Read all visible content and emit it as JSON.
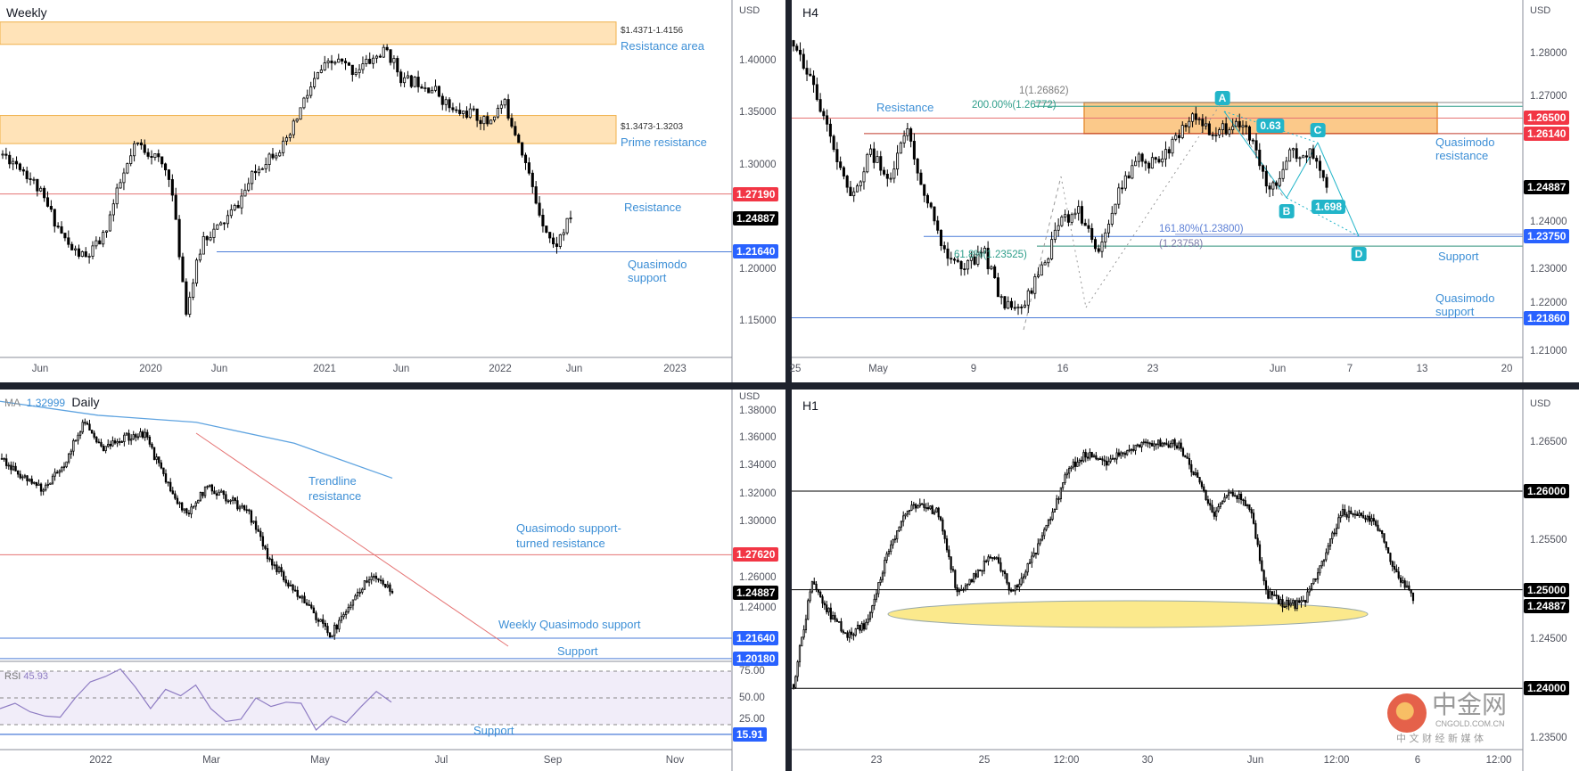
{
  "colors": {
    "resistance_line": "#e57373",
    "support_line": "#4a7bd8",
    "zone_fill": "#ffe3b8",
    "zone_border": "#f0b04a",
    "h4_zone_fill": "#fbc98a",
    "h4_zone_border": "#e8923a",
    "label_text": "#3d8fd6",
    "harmonic": "#22b5c9",
    "ma": "#5ea3e0",
    "rsi": "#8e7cc3",
    "rsi_band": "#f1edf9",
    "ellipse": "#fbe98c",
    "badge_red": "#f23645",
    "badge_blue": "#2962ff",
    "badge_black": "#000000"
  },
  "weekly": {
    "title": "Weekly",
    "currency": "USD",
    "price_ticks": [
      "1.40000",
      "1.35000",
      "1.30000",
      "1.20000",
      "1.15000"
    ],
    "time_ticks": [
      "Jun",
      "2020",
      "Jun",
      "2021",
      "Jun",
      "2022",
      "Jun",
      "2023"
    ],
    "badges": [
      {
        "value": "1.27190",
        "color": "#f23645"
      },
      {
        "value": "1.24887",
        "color": "#000000"
      },
      {
        "value": "1.21640",
        "color": "#2962ff"
      }
    ],
    "zones": [
      {
        "range_label": "$1.4371-1.4156",
        "label": "Resistance area",
        "top": 1.4371,
        "bottom": 1.4156
      },
      {
        "range_label": "$1.3473-1.3203",
        "label": "Prime resistance",
        "top": 1.3473,
        "bottom": 1.3203
      }
    ],
    "levels": [
      {
        "price": 1.2719,
        "label": "Resistance",
        "color": "#e57373"
      },
      {
        "price": 1.2164,
        "label": "Quasimodo support",
        "color": "#4a7bd8"
      }
    ]
  },
  "h4": {
    "title": "H4",
    "currency": "USD",
    "price_ticks": [
      "1.28000",
      "1.27000",
      "1.24000",
      "1.23000",
      "1.22000",
      "1.21000"
    ],
    "time_ticks": [
      "25",
      "May",
      "9",
      "16",
      "23",
      "Jun",
      "7",
      "13",
      "20"
    ],
    "badges": [
      {
        "value": "1.26500",
        "color": "#f23645"
      },
      {
        "value": "1.26140",
        "color": "#f23645"
      },
      {
        "value": "1.24887",
        "color": "#000000"
      },
      {
        "value": "1.23750",
        "color": "#2962ff"
      },
      {
        "value": "1.21860",
        "color": "#2962ff"
      }
    ],
    "labels": {
      "resistance": "Resistance",
      "qm_resistance": "Quasimodo resistance",
      "support": "Support",
      "qm_support": "Quasimodo support"
    },
    "fib_labels": {
      "ext_200": "200.00%(1.26772)",
      "ext_1": "1(1.26862)",
      "ext_1618": "161.80%(1.23800)",
      "ext_1618_b": "(1.23758)",
      "ret_618": "61.8%(1.23525)"
    },
    "harmonic": {
      "points": [
        "A",
        "B",
        "C",
        "D"
      ],
      "ratio_bc": "0.63",
      "ratio_bd": "1.698"
    },
    "zone": {
      "top": 1.2686,
      "bottom": 1.2614
    }
  },
  "daily": {
    "ma_label": "MA",
    "ma_value": "1.32999",
    "title": "Daily",
    "currency": "USD",
    "price_ticks": [
      "1.38000",
      "1.36000",
      "1.34000",
      "1.32000",
      "1.30000",
      "1.26000",
      "1.24000"
    ],
    "time_ticks": [
      "2022",
      "Mar",
      "May",
      "Jul",
      "Sep",
      "Nov"
    ],
    "badges": [
      {
        "value": "1.27620",
        "color": "#f23645"
      },
      {
        "value": "1.24887",
        "color": "#000000"
      },
      {
        "value": "1.21640",
        "color": "#2962ff"
      },
      {
        "value": "1.20180",
        "color": "#2962ff"
      }
    ],
    "labels": {
      "trendline_1": "Trendline",
      "trendline_2": "resistance",
      "qm_turned_1": "Quasimodo support-",
      "qm_turned_2": "turned resistance",
      "weekly_qm": "Weekly Quasimodo support",
      "support": "Support"
    },
    "rsi": {
      "label": "RSI",
      "value": "45.93",
      "ticks": [
        "75.00",
        "50.00",
        "25.00"
      ],
      "badge": {
        "value": "15.91",
        "color": "#2962ff"
      },
      "support_label": "Support"
    }
  },
  "h1": {
    "title": "H1",
    "currency": "USD",
    "price_ticks": [
      "1.26500",
      "1.25500",
      "1.24500",
      "1.23500"
    ],
    "time_ticks": [
      "23",
      "25",
      "12:00",
      "30",
      "Jun",
      "12:00",
      "6",
      "12:00"
    ],
    "badges": [
      {
        "value": "1.26000",
        "color": "#000000"
      },
      {
        "value": "1.25000",
        "color": "#000000"
      },
      {
        "value": "1.24887",
        "color": "#000000"
      },
      {
        "value": "1.24000",
        "color": "#000000"
      }
    ]
  },
  "watermark": {
    "brand_cn": "中金网",
    "domain": "CNGOLD.COM.CN",
    "tagline": "中 文 财 经 新 媒 体"
  },
  "chart_data": [
    {
      "type": "candlestick",
      "title": "Weekly",
      "ylabel": "USD",
      "ylim": [
        1.12,
        1.46
      ],
      "price_path": [
        1.31,
        1.3,
        1.28,
        1.25,
        1.22,
        1.21,
        1.23,
        1.28,
        1.32,
        1.31,
        1.29,
        1.16,
        1.23,
        1.24,
        1.26,
        1.29,
        1.31,
        1.32,
        1.36,
        1.39,
        1.4,
        1.39,
        1.4,
        1.41,
        1.38,
        1.38,
        1.37,
        1.35,
        1.35,
        1.34,
        1.36,
        1.32,
        1.26,
        1.22,
        1.2489
      ],
      "last": 1.24887
    },
    {
      "type": "candlestick",
      "title": "H4",
      "ylabel": "USD",
      "ylim": [
        1.208,
        1.288
      ],
      "price_path": [
        1.283,
        1.2738,
        1.2585,
        1.2456,
        1.2574,
        1.2514,
        1.262,
        1.2456,
        1.234,
        1.2305,
        1.234,
        1.2212,
        1.2212,
        1.2293,
        1.2411,
        1.2433,
        1.235,
        1.2468,
        1.2562,
        1.2539,
        1.2597,
        1.2655,
        1.262,
        1.2632,
        1.261,
        1.2479,
        1.2562,
        1.2574,
        1.2489
      ],
      "last": 1.24887
    },
    {
      "type": "candlestick",
      "title": "Daily",
      "ylabel": "USD",
      "ylim": [
        1.195,
        1.385
      ],
      "price_path": [
        1.345,
        1.331,
        1.322,
        1.341,
        1.372,
        1.352,
        1.36,
        1.362,
        1.327,
        1.306,
        1.324,
        1.317,
        1.306,
        1.273,
        1.255,
        1.237,
        1.219,
        1.241,
        1.262,
        1.2489
      ],
      "ma_path": [
        1.386,
        1.376,
        1.371,
        1.356,
        1.331
      ],
      "rsi_path": [
        40,
        45,
        37,
        33,
        32,
        50,
        65,
        70,
        77,
        60,
        40,
        58,
        52,
        62,
        40,
        28,
        30,
        50,
        42,
        46,
        45,
        20,
        33,
        27,
        42,
        56,
        46
      ],
      "last": 1.24887
    },
    {
      "type": "candlestick",
      "title": "H1",
      "ylabel": "USD",
      "ylim": [
        1.233,
        1.268
      ],
      "price_path": [
        1.2404,
        1.2506,
        1.2475,
        1.2454,
        1.2465,
        1.2527,
        1.2577,
        1.2587,
        1.2577,
        1.2496,
        1.2516,
        1.2537,
        1.2496,
        1.2527,
        1.2567,
        1.2618,
        1.2639,
        1.2628,
        1.2639,
        1.2649,
        1.2649,
        1.2649,
        1.2618,
        1.2577,
        1.2598,
        1.2587,
        1.2496,
        1.2485,
        1.2485,
        1.2527,
        1.2577,
        1.2577,
        1.2567,
        1.2521,
        1.2489
      ],
      "levels": [
        1.26,
        1.25,
        1.24
      ],
      "last": 1.24887
    }
  ]
}
